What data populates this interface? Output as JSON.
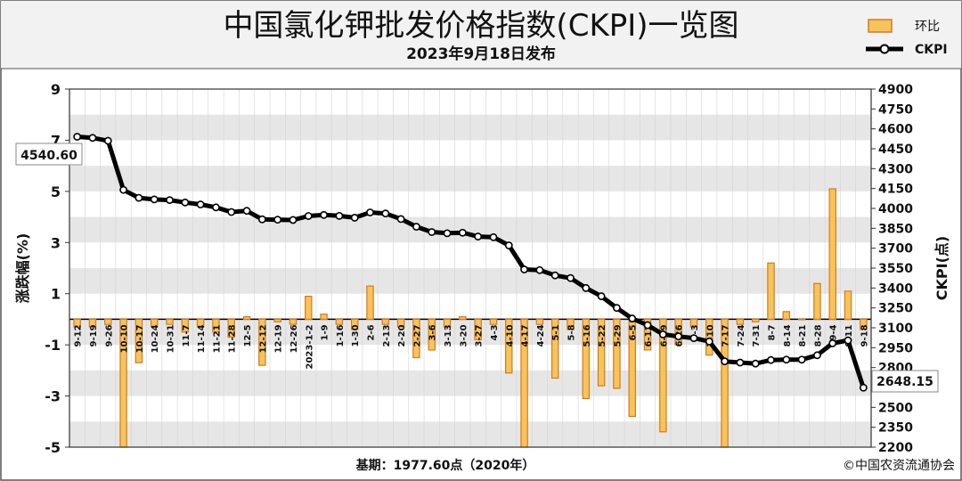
{
  "title": "中国氯化钾批发价格指数(CKPI)一览图",
  "subtitle": "2023年9月18日发布",
  "legend": {
    "bar_label": "环比",
    "line_label": "CKPI"
  },
  "left_axis_label": "涨跌幅(%)",
  "right_axis_label": "CKPI(点)",
  "footer": {
    "base": "基期：1977.60点（2020年）",
    "copyright": "©中国农资流通协会"
  },
  "start_callout": "4540.60",
  "end_callout": "2648.15",
  "colors": {
    "bar_fill": "#f6c45c",
    "bar_edge": "#d9791a",
    "line": "#000000",
    "panel_shade": "#e6e6e6",
    "page_bg": "#f2f2f2"
  },
  "chart_data": {
    "type": "bar+line",
    "categories": [
      "9-12",
      "9-19",
      "9-26",
      "10-10",
      "10-17",
      "10-24",
      "10-31",
      "11-7",
      "11-14",
      "11-21",
      "11-28",
      "12-5",
      "12-12",
      "12-19",
      "12-26",
      "2023-1-2",
      "1-9",
      "1-16",
      "1-30",
      "2-6",
      "2-13",
      "2-20",
      "2-27",
      "3-6",
      "3-13",
      "3-20",
      "3-27",
      "4-3",
      "4-10",
      "4-17",
      "4-24",
      "5-1",
      "5-8",
      "5-16",
      "5-22",
      "5-29",
      "6-5",
      "6-12",
      "6-19",
      "6-26",
      "7-3",
      "7-10",
      "7-17",
      "7-24",
      "7-31",
      "8-7",
      "8-14",
      "8-21",
      "8-28",
      "9-4",
      "9-11",
      "9-18"
    ],
    "category_labels": [
      "9-12",
      "9-19",
      "9-26",
      "10-10",
      "10-17",
      "10-24",
      "10-31",
      "11-7",
      "11-14",
      "11-21",
      "11-28",
      "12-5",
      "12-12",
      "12-19",
      "12-26",
      "2023-1-2",
      "1-9",
      "1-16",
      "1-30",
      "2-6",
      "2-13",
      "2-20",
      "2-27",
      "3-6",
      "3-13",
      "3-20",
      "3-27",
      "4-3",
      "4-10",
      "4-17",
      "4-24",
      "5-1",
      "5-8",
      "5-16",
      "5-22",
      "5-29",
      "6-5",
      "6-12",
      "6-19",
      "6-26",
      "7-3",
      "7-10",
      "7-17",
      "7-24",
      "7-31",
      "8-7",
      "8-14",
      "8-21",
      "8-28",
      "9-4",
      "9-11",
      "9-18"
    ],
    "series": [
      {
        "name": "环比",
        "axis": "left",
        "type": "bar",
        "values": [
          -0.3,
          -0.3,
          -0.2,
          -5.0,
          -1.7,
          -0.3,
          -0.2,
          -0.5,
          -0.3,
          -0.5,
          -0.7,
          0.1,
          -1.8,
          -0.1,
          -0.2,
          0.9,
          0.2,
          -0.2,
          -0.4,
          1.3,
          -0.2,
          -0.3,
          -1.5,
          -1.2,
          -0.3,
          0.1,
          -0.8,
          -0.2,
          -2.1,
          -5.0,
          -0.2,
          -2.3,
          -0.4,
          -3.1,
          -2.6,
          -2.7,
          -3.8,
          -1.2,
          -4.4,
          -1.0,
          -0.3,
          -1.4,
          -5.0,
          -0.2,
          -0.1,
          2.2,
          0.3,
          0.0,
          1.4,
          5.1,
          1.1,
          -0.4
        ]
      },
      {
        "name": "CKPI",
        "axis": "right",
        "type": "line",
        "values": [
          4540.6,
          4532,
          4510,
          4140,
          4080,
          4068,
          4063,
          4045,
          4030,
          4008,
          3973,
          3982,
          3918,
          3915,
          3913,
          3943,
          3951,
          3944,
          3930,
          3970,
          3962,
          3920,
          3862,
          3822,
          3813,
          3817,
          3788,
          3783,
          3721,
          3540,
          3535,
          3495,
          3475,
          3400,
          3338,
          3250,
          3170,
          3120,
          3050,
          3035,
          3022,
          2997,
          2847,
          2838,
          2830,
          2857,
          2860,
          2860,
          2893,
          2983,
          3005,
          2648.15
        ]
      }
    ],
    "left_axis": {
      "min": -5,
      "max": 9,
      "ticks": [
        9,
        7,
        5,
        3,
        1,
        -1,
        -3,
        -5
      ]
    },
    "right_axis": {
      "min": 2200,
      "max": 4900,
      "step": 150
    },
    "grid": "horizontal bands",
    "legend_position": "top-right"
  }
}
